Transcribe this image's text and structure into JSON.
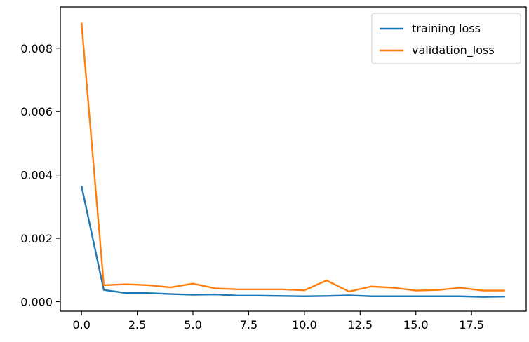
{
  "chart_data": {
    "type": "line",
    "title": "",
    "xlabel": "",
    "ylabel": "",
    "xlim": [
      -0.95,
      19.95
    ],
    "ylim": [
      -0.0003,
      0.0093
    ],
    "xticks": [
      0.0,
      2.5,
      5.0,
      7.5,
      10.0,
      12.5,
      15.0,
      17.5
    ],
    "xtick_labels": [
      "0.0",
      "2.5",
      "5.0",
      "7.5",
      "10.0",
      "12.5",
      "15.0",
      "17.5"
    ],
    "yticks": [
      0.0,
      0.002,
      0.004,
      0.006,
      0.008
    ],
    "ytick_labels": [
      "0.000",
      "0.002",
      "0.004",
      "0.006",
      "0.008"
    ],
    "grid": false,
    "legend_position": "top-right",
    "x": [
      0,
      1,
      2,
      3,
      4,
      5,
      6,
      7,
      8,
      9,
      10,
      11,
      12,
      13,
      14,
      15,
      16,
      17,
      18,
      19
    ],
    "series": [
      {
        "name": "training loss",
        "color": "#1f77b4",
        "values": [
          0.00365,
          0.00037,
          0.00027,
          0.00027,
          0.00024,
          0.00022,
          0.00023,
          0.00019,
          0.00019,
          0.00018,
          0.00017,
          0.00018,
          0.0002,
          0.00017,
          0.00017,
          0.00017,
          0.00017,
          0.00017,
          0.00015,
          0.00016
        ]
      },
      {
        "name": "validation_loss",
        "color": "#ff7f0e",
        "values": [
          0.0088,
          0.00052,
          0.00055,
          0.00052,
          0.00045,
          0.00057,
          0.00042,
          0.00039,
          0.00039,
          0.00039,
          0.00036,
          0.00067,
          0.00032,
          0.00048,
          0.00044,
          0.00035,
          0.00037,
          0.00044,
          0.00035,
          0.00035
        ]
      }
    ]
  }
}
